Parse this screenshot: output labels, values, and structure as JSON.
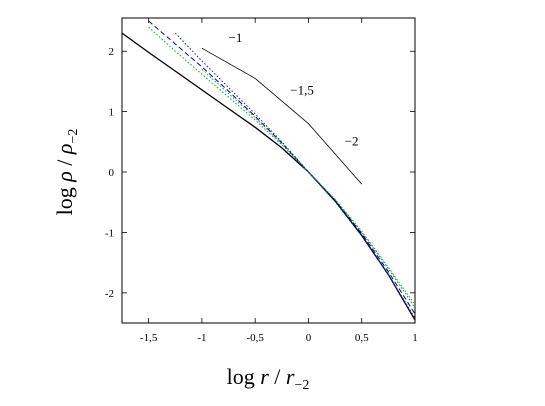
{
  "chart_data": {
    "type": "line",
    "title": "",
    "xlabel": {
      "base": "log ",
      "var": "r",
      "sep": " / ",
      "var2": "r",
      "sub": "−2"
    },
    "ylabel": {
      "base": "log ",
      "var": "ρ",
      "sep": " / ",
      "var2": "ρ",
      "sub": "−2"
    },
    "xlim": [
      -1.75,
      1.0
    ],
    "ylim": [
      -2.5,
      2.55
    ],
    "x_ticks": [
      -1.5,
      -1,
      -0.5,
      0,
      0.5,
      1
    ],
    "x_tick_labels": [
      "-1,5",
      "-1",
      "-0,5",
      "0",
      "0,5",
      "1"
    ],
    "y_ticks": [
      -2,
      -1,
      0,
      1,
      2
    ],
    "y_tick_labels": [
      "-2",
      "-1",
      "0",
      "1",
      "2"
    ],
    "grid": false,
    "series": [
      {
        "style": "solid",
        "color": "#000000",
        "x": [
          -1.75,
          -1.5,
          -1.25,
          -1.0,
          -0.75,
          -0.5,
          -0.25,
          0.0,
          0.25,
          0.5,
          0.75,
          1.0
        ],
        "y": [
          2.3,
          1.98,
          1.67,
          1.36,
          1.05,
          0.74,
          0.4,
          0.0,
          -0.48,
          -1.05,
          -1.7,
          -2.45
        ]
      },
      {
        "style": "dotted",
        "color": "#00b000",
        "x": [
          -1.5,
          -1.25,
          -1.0,
          -0.75,
          -0.5,
          -0.25,
          0.0,
          0.25,
          0.5,
          0.75,
          1.0
        ],
        "y": [
          2.4,
          2.0,
          1.62,
          1.24,
          0.86,
          0.45,
          0.0,
          -0.46,
          -1.0,
          -1.6,
          -2.25
        ]
      },
      {
        "style": "dashed",
        "color": "#0000c0",
        "x": [
          -1.5,
          -1.25,
          -1.0,
          -0.75,
          -0.5,
          -0.25,
          0.0,
          0.25,
          0.5,
          0.75,
          1.0
        ],
        "y": [
          2.5,
          2.12,
          1.74,
          1.34,
          0.92,
          0.48,
          0.0,
          -0.47,
          -1.02,
          -1.65,
          -2.35
        ]
      },
      {
        "style": "dotted",
        "color": "#1a1ab0",
        "x": [
          -1.25,
          -1.0,
          -0.75,
          -0.5,
          -0.25,
          0.0,
          0.25,
          0.5,
          0.75,
          1.0
        ],
        "y": [
          2.3,
          1.84,
          1.4,
          0.96,
          0.5,
          0.0,
          -0.49,
          -1.06,
          -1.7,
          -2.42
        ]
      },
      {
        "style": "dotted",
        "color": "#20a040",
        "x": [
          -1.0,
          -0.75,
          -0.5,
          -0.25,
          0.0,
          0.25,
          0.5,
          0.75,
          1.0
        ],
        "y": [
          1.7,
          1.3,
          0.9,
          0.47,
          0.0,
          -0.45,
          -0.98,
          -1.58,
          -2.2
        ]
      }
    ],
    "slope_guides": {
      "x": [
        -1.0,
        -0.5,
        0.0,
        0.5
      ],
      "y": [
        2.05,
        1.55,
        0.8,
        -0.2
      ],
      "labels": [
        {
          "text": "−1",
          "x": -0.75,
          "y": 2.15
        },
        {
          "text": "−1,5",
          "x": -0.17,
          "y": 1.28
        },
        {
          "text": "−2",
          "x": 0.34,
          "y": 0.44
        }
      ]
    }
  }
}
